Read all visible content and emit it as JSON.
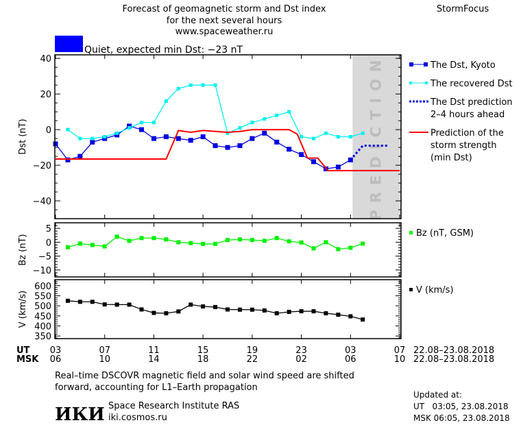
{
  "header": {
    "title_lines": [
      "Forecast of geomagnetic storm and Dst index",
      "for the next several hours",
      "www.spaceweather.ru"
    ],
    "brand": "StormFocus",
    "status_color": "#0000ff",
    "status_text": "Quiet, expected min Dst: −23 nT"
  },
  "colors": {
    "dst": "#0000e0",
    "recovered": "#00f0f0",
    "prediction": "#0000e0",
    "storm": "#ff0000",
    "bz": "#00f000",
    "v": "#000000",
    "prediction_zone": "#d9d9d9",
    "prediction_text": "#bdbdbd"
  },
  "chart_data": [
    {
      "type": "line",
      "ylabel": "Dst (nT)",
      "ylim": [
        -50,
        42
      ],
      "yticks": [
        40,
        20,
        0,
        -20,
        -40
      ],
      "xlim": [
        "08-22 03:00",
        "08-23 07:00"
      ],
      "prediction_zone_label": "PREDICTION",
      "prediction_zone_start": "08-23 03:10",
      "series": [
        {
          "name": "The Dst, Kyoto",
          "key": "dst",
          "marker": "square",
          "points": [
            [
              "08-22 03:00",
              -8
            ],
            [
              "08-22 04:00",
              -17
            ],
            [
              "08-22 05:00",
              -15
            ],
            [
              "08-22 06:00",
              -7
            ],
            [
              "08-22 07:00",
              -5
            ],
            [
              "08-22 08:00",
              -3
            ],
            [
              "08-22 09:00",
              2
            ],
            [
              "08-22 10:00",
              0
            ],
            [
              "08-22 11:00",
              -5
            ],
            [
              "08-22 12:00",
              -4
            ],
            [
              "08-22 13:00",
              -5
            ],
            [
              "08-22 14:00",
              -6
            ],
            [
              "08-22 15:00",
              -4
            ],
            [
              "08-22 16:00",
              -9
            ],
            [
              "08-22 17:00",
              -10
            ],
            [
              "08-22 18:00",
              -9
            ],
            [
              "08-22 19:00",
              -5
            ],
            [
              "08-22 20:00",
              -2
            ],
            [
              "08-22 21:00",
              -7
            ],
            [
              "08-22 22:00",
              -11
            ],
            [
              "08-22 23:00",
              -14
            ],
            [
              "08-23 00:00",
              -18
            ],
            [
              "08-23 01:00",
              -22
            ],
            [
              "08-23 02:00",
              -21
            ],
            [
              "08-23 03:00",
              -17
            ]
          ]
        },
        {
          "name": "The recovered Dst",
          "key": "recovered",
          "marker": "small-square",
          "points": [
            [
              "08-22 04:00",
              0
            ],
            [
              "08-22 05:00",
              -5
            ],
            [
              "08-22 06:00",
              -5
            ],
            [
              "08-22 07:00",
              -4
            ],
            [
              "08-22 08:00",
              -2
            ],
            [
              "08-22 09:00",
              1
            ],
            [
              "08-22 10:00",
              4
            ],
            [
              "08-22 11:00",
              4
            ],
            [
              "08-22 12:00",
              16
            ],
            [
              "08-22 13:00",
              23
            ],
            [
              "08-22 14:00",
              25
            ],
            [
              "08-22 15:00",
              25
            ],
            [
              "08-22 16:00",
              25
            ],
            [
              "08-22 17:00",
              -2
            ],
            [
              "08-22 18:00",
              1
            ],
            [
              "08-22 19:00",
              4
            ],
            [
              "08-22 20:00",
              6
            ],
            [
              "08-22 21:00",
              8
            ],
            [
              "08-22 22:00",
              10
            ],
            [
              "08-22 23:00",
              -4
            ],
            [
              "08-23 00:00",
              -5
            ],
            [
              "08-23 01:00",
              -2
            ],
            [
              "08-23 02:00",
              -4
            ],
            [
              "08-23 03:00",
              -4
            ],
            [
              "08-23 04:00",
              -2
            ]
          ]
        },
        {
          "name": "The Dst prediction 2–4 hours ahead",
          "key": "prediction",
          "marker": "dotted",
          "points": [
            [
              "08-23 03:00",
              -17
            ],
            [
              "08-23 04:00",
              -9
            ],
            [
              "08-23 06:00",
              -9
            ]
          ]
        },
        {
          "name": "Prediction of the storm strength (min Dst)",
          "key": "storm",
          "marker": "none",
          "points": [
            [
              "08-22 03:00",
              -16.5
            ],
            [
              "08-22 12:00",
              -16.5
            ],
            [
              "08-22 13:00",
              -0.5
            ],
            [
              "08-22 14:00",
              -1.5
            ],
            [
              "08-22 15:00",
              -0.5
            ],
            [
              "08-22 17:00",
              -1.5
            ],
            [
              "08-22 18:00",
              -1
            ],
            [
              "08-22 19:00",
              0
            ],
            [
              "08-22 22:00",
              0
            ],
            [
              "08-22 22:40",
              -2.5
            ],
            [
              "08-22 23:30",
              -16
            ],
            [
              "08-23 00:20",
              -16
            ],
            [
              "08-23 01:10",
              -23
            ],
            [
              "08-23 07:00",
              -23
            ]
          ]
        }
      ],
      "legend": [
        {
          "key": "dst",
          "lines": [
            "The Dst, Kyoto"
          ]
        },
        {
          "key": "recovered",
          "lines": [
            "The recovered Dst"
          ]
        },
        {
          "key": "prediction",
          "lines": [
            "The Dst prediction",
            "2–4 hours ahead"
          ]
        },
        {
          "key": "storm",
          "lines": [
            "Prediction of the",
            "storm strength",
            "(min Dst)"
          ]
        }
      ]
    },
    {
      "type": "line",
      "ylabel": "Bz (nT)",
      "ylim": [
        -12.5,
        7
      ],
      "yticks": [
        5,
        0,
        -5,
        -10
      ],
      "series": [
        {
          "name": "Bz (nT, GSM)",
          "key": "bz",
          "marker": "square",
          "points": [
            [
              "08-22 04:00",
              -1.8
            ],
            [
              "08-22 05:00",
              -0.5
            ],
            [
              "08-22 06:00",
              -1
            ],
            [
              "08-22 07:00",
              -1.5
            ],
            [
              "08-22 08:00",
              2
            ],
            [
              "08-22 09:00",
              0.5
            ],
            [
              "08-22 10:00",
              1.5
            ],
            [
              "08-22 11:00",
              1.5
            ],
            [
              "08-22 12:00",
              1
            ],
            [
              "08-22 13:00",
              0
            ],
            [
              "08-22 14:00",
              -0.3
            ],
            [
              "08-22 15:00",
              -0.6
            ],
            [
              "08-22 16:00",
              -0.6
            ],
            [
              "08-22 17:00",
              0.8
            ],
            [
              "08-22 18:00",
              1
            ],
            [
              "08-22 19:00",
              0.8
            ],
            [
              "08-22 20:00",
              0.5
            ],
            [
              "08-22 21:00",
              1.5
            ],
            [
              "08-22 22:00",
              0.3
            ],
            [
              "08-22 23:00",
              -0.1
            ],
            [
              "08-23 00:00",
              -2.2
            ],
            [
              "08-23 01:00",
              0
            ],
            [
              "08-23 02:00",
              -2.5
            ],
            [
              "08-23 03:00",
              -2
            ],
            [
              "08-23 04:00",
              -0.5
            ]
          ]
        }
      ],
      "legend": [
        {
          "key": "bz",
          "lines": [
            "Bz (nT, GSM)"
          ]
        }
      ]
    },
    {
      "type": "line",
      "ylabel": "V (km/s)",
      "ylim": [
        337,
        630
      ],
      "yticks": [
        600,
        550,
        500,
        450,
        400,
        350
      ],
      "series": [
        {
          "name": "V (km/s)",
          "key": "v",
          "marker": "square",
          "points": [
            [
              "08-22 04:00",
              525
            ],
            [
              "08-22 05:00",
              520
            ],
            [
              "08-22 06:00",
              520
            ],
            [
              "08-22 07:00",
              507
            ],
            [
              "08-22 08:00",
              506
            ],
            [
              "08-22 09:00",
              506
            ],
            [
              "08-22 10:00",
              482
            ],
            [
              "08-22 11:00",
              465
            ],
            [
              "08-22 12:00",
              463
            ],
            [
              "08-22 13:00",
              472
            ],
            [
              "08-22 14:00",
              506
            ],
            [
              "08-22 15:00",
              497
            ],
            [
              "08-22 16:00",
              494
            ],
            [
              "08-22 17:00",
              482
            ],
            [
              "08-22 18:00",
              481
            ],
            [
              "08-22 19:00",
              481
            ],
            [
              "08-22 20:00",
              477
            ],
            [
              "08-22 21:00",
              463
            ],
            [
              "08-22 22:00",
              470
            ],
            [
              "08-22 23:00",
              473
            ],
            [
              "08-23 00:00",
              473
            ],
            [
              "08-23 01:00",
              463
            ],
            [
              "08-23 02:00",
              456
            ],
            [
              "08-23 03:00",
              448
            ],
            [
              "08-23 04:00",
              432
            ]
          ]
        }
      ],
      "legend": [
        {
          "key": "v",
          "lines": [
            "V (km/s)"
          ]
        }
      ]
    }
  ],
  "xaxis": {
    "ut_label": "UT",
    "msk_label": "MSK",
    "ut_ticks": [
      "03",
      "07",
      "11",
      "15",
      "19",
      "23",
      "03",
      "07"
    ],
    "msk_ticks": [
      "06",
      "10",
      "14",
      "18",
      "22",
      "02",
      "06",
      "10"
    ],
    "ut_range": "22.08–23.08.2018",
    "msk_range": "22.08–23.08.2018"
  },
  "footer": {
    "note_lines": [
      "Real–time DSCOVR magnetic field and solar wind speed are shifted",
      "forward, accounting for L1–Earth propagation"
    ],
    "logo": "ИКИ",
    "institute": "Space Research Institute RAS",
    "site": "iki.cosmos.ru",
    "updated_label": "Updated at:",
    "updated_ut": "UT   03:05, 23.08.2018",
    "updated_msk": "MSK 06:05, 23.08.2018"
  }
}
